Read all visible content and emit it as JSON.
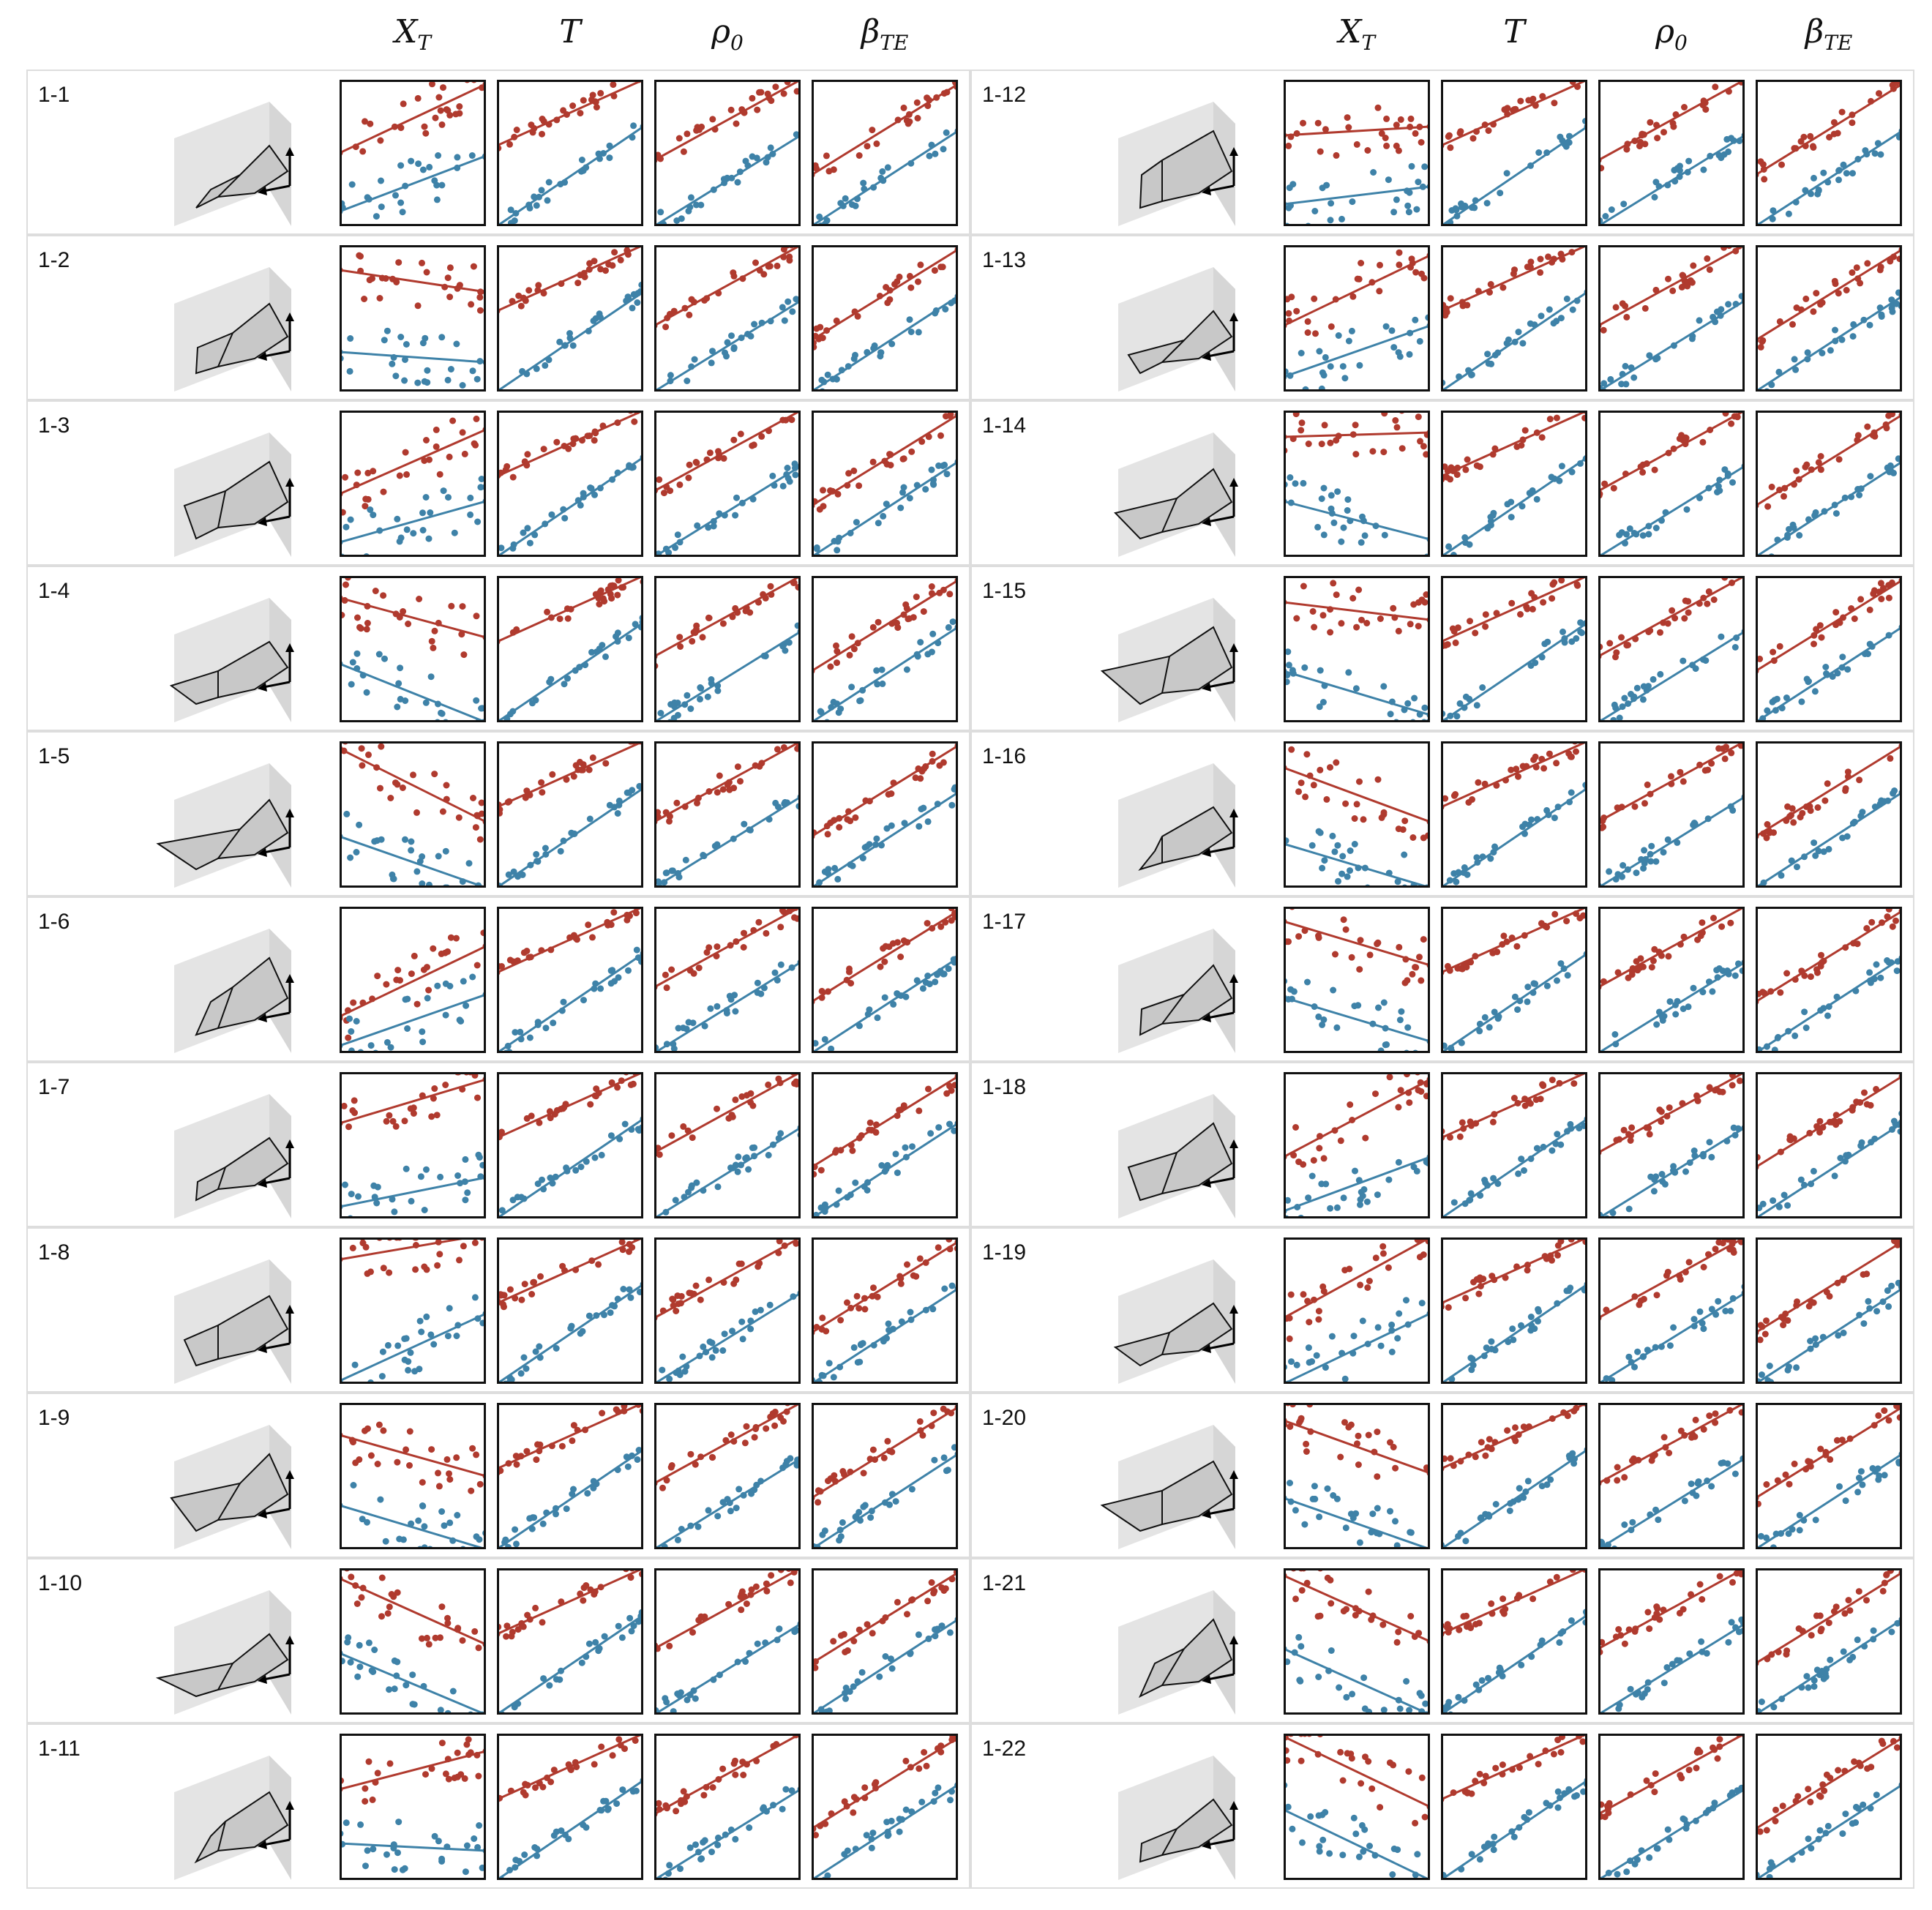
{
  "column_headers": [
    {
      "base": "X",
      "sub": "T"
    },
    {
      "base": "T",
      "sub": ""
    },
    {
      "base": "ρ",
      "sub": "0"
    },
    {
      "base": "β",
      "sub": "TE"
    }
  ],
  "colors": {
    "red": "#b03a2e",
    "blue": "#3e82a8",
    "frame": "#111111",
    "cell_border": "#dddddd",
    "wing_fill": "#c8c8c8",
    "wall_fill": "#e4e4e4"
  },
  "rows": [
    {
      "label": "1-1"
    },
    {
      "label": "1-2"
    },
    {
      "label": "1-3"
    },
    {
      "label": "1-4"
    },
    {
      "label": "1-5"
    },
    {
      "label": "1-6"
    },
    {
      "label": "1-7"
    },
    {
      "label": "1-8"
    },
    {
      "label": "1-9"
    },
    {
      "label": "1-10"
    },
    {
      "label": "1-11"
    },
    {
      "label": "1-12"
    },
    {
      "label": "1-13"
    },
    {
      "label": "1-14"
    },
    {
      "label": "1-15"
    },
    {
      "label": "1-16"
    },
    {
      "label": "1-17"
    },
    {
      "label": "1-18"
    },
    {
      "label": "1-19"
    },
    {
      "label": "1-20"
    },
    {
      "label": "1-21"
    },
    {
      "label": "1-22"
    }
  ],
  "chart_data": {
    "type": "scatter",
    "description_of_panels": "22 rows x 4 scatter panels, each with red and blue point series and fitted lines; values normalized 0-1",
    "xlim": [
      0,
      1
    ],
    "ylim": [
      0,
      1
    ],
    "fits": [
      {
        "row": "1-1",
        "XT": {
          "red": [
            0.5,
            0.97
          ],
          "blue": [
            0.1,
            0.48
          ]
        }
      },
      {
        "row": "1-2",
        "XT": {
          "red": [
            0.83,
            0.68
          ],
          "blue": [
            0.27,
            0.2
          ]
        }
      },
      {
        "row": "1-3",
        "XT": {
          "red": [
            0.43,
            0.87
          ],
          "blue": [
            0.1,
            0.38
          ]
        }
      },
      {
        "row": "1-4",
        "XT": {
          "red": [
            0.85,
            0.58
          ],
          "blue": [
            0.4,
            0.0
          ]
        }
      },
      {
        "row": "1-5",
        "XT": {
          "red": [
            0.95,
            0.45
          ],
          "blue": [
            0.35,
            0.0
          ]
        }
      },
      {
        "row": "1-6",
        "XT": {
          "red": [
            0.25,
            0.73
          ],
          "blue": [
            0.05,
            0.4
          ]
        }
      },
      {
        "row": "1-7",
        "XT": {
          "red": [
            0.65,
            0.95
          ],
          "blue": [
            0.08,
            0.28
          ]
        }
      },
      {
        "row": "1-8",
        "XT": {
          "red": [
            0.85,
            1.02
          ],
          "blue": [
            0.02,
            0.48
          ]
        }
      },
      {
        "row": "1-9",
        "XT": {
          "red": [
            0.78,
            0.5
          ],
          "blue": [
            0.3,
            0.0
          ]
        }
      },
      {
        "row": "1-10",
        "XT": {
          "red": [
            0.93,
            0.48
          ],
          "blue": [
            0.42,
            0.0
          ]
        }
      },
      {
        "row": "1-11",
        "XT": {
          "red": [
            0.62,
            0.88
          ],
          "blue": [
            0.25,
            0.2
          ]
        }
      },
      {
        "row": "1-12",
        "XT": {
          "red": [
            0.62,
            0.68
          ],
          "blue": [
            0.15,
            0.27
          ]
        }
      },
      {
        "row": "1-13",
        "XT": {
          "red": [
            0.45,
            0.93
          ],
          "blue": [
            0.1,
            0.45
          ]
        }
      },
      {
        "row": "1-14",
        "XT": {
          "red": [
            0.82,
            0.85
          ],
          "blue": [
            0.38,
            0.12
          ]
        }
      },
      {
        "row": "1-15",
        "XT": {
          "red": [
            0.82,
            0.7
          ],
          "blue": [
            0.35,
            0.05
          ]
        }
      },
      {
        "row": "1-16",
        "XT": {
          "red": [
            0.82,
            0.45
          ],
          "blue": [
            0.3,
            0.0
          ]
        }
      },
      {
        "row": "1-17",
        "XT": {
          "red": [
            0.9,
            0.6
          ],
          "blue": [
            0.38,
            0.08
          ]
        }
      },
      {
        "row": "1-18",
        "XT": {
          "red": [
            0.42,
            0.95
          ],
          "blue": [
            0.05,
            0.42
          ]
        }
      },
      {
        "row": "1-19",
        "XT": {
          "red": [
            0.45,
            1.0
          ],
          "blue": [
            0.0,
            0.48
          ]
        }
      },
      {
        "row": "1-20",
        "XT": {
          "red": [
            0.88,
            0.52
          ],
          "blue": [
            0.35,
            0.0
          ]
        }
      },
      {
        "row": "1-21",
        "XT": {
          "red": [
            0.95,
            0.5
          ],
          "blue": [
            0.45,
            0.0
          ]
        }
      },
      {
        "row": "1-22",
        "XT": {
          "red": [
            0.98,
            0.5
          ],
          "blue": [
            0.48,
            0.0
          ]
        }
      }
    ]
  }
}
